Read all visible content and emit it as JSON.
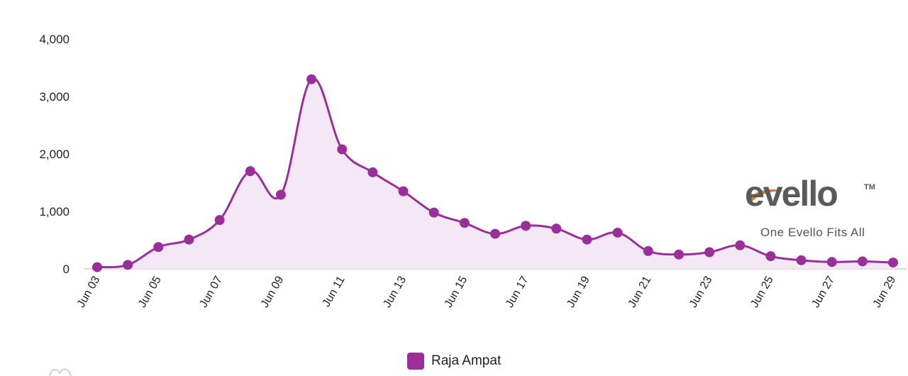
{
  "chart_data": {
    "type": "area",
    "x": [
      "Jun 03",
      "Jun 04",
      "Jun 05",
      "Jun 06",
      "Jun 07",
      "Jun 08",
      "Jun 09",
      "Jun 10",
      "Jun 11",
      "Jun 12",
      "Jun 13",
      "Jun 14",
      "Jun 15",
      "Jun 16",
      "Jun 17",
      "Jun 18",
      "Jun 19",
      "Jun 20",
      "Jun 21",
      "Jun 22",
      "Jun 23",
      "Jun 24",
      "Jun 25",
      "Jun 26",
      "Jun 27",
      "Jun 28",
      "Jun 29"
    ],
    "xtick_labels": [
      "Jun 03",
      "Jun 05",
      "Jun 07",
      "Jun 09",
      "Jun 11",
      "Jun 13",
      "Jun 15",
      "Jun 17",
      "Jun 19",
      "Jun 21",
      "Jun 23",
      "Jun 25",
      "Jun 27",
      "Jun 29"
    ],
    "series": [
      {
        "name": "Raja Ampat",
        "values": [
          30,
          70,
          380,
          510,
          850,
          1700,
          1290,
          3300,
          2080,
          1680,
          1350,
          980,
          800,
          610,
          750,
          700,
          510,
          630,
          310,
          250,
          290,
          410,
          220,
          150,
          120,
          130,
          110
        ]
      }
    ],
    "ylim": [
      0,
      4000
    ],
    "yticks": [
      0,
      1000,
      2000,
      3000,
      4000
    ],
    "ytick_labels": [
      "0",
      "1,000",
      "2,000",
      "3,000",
      "4,000"
    ],
    "grid": false,
    "legend": "bottom-center"
  },
  "colors": {
    "line": "#9a2f9c",
    "fill": "#f5e8f6",
    "axis": "#d9c8da"
  },
  "legend": {
    "label": "Raja Ampat"
  },
  "logo": {
    "wordmark": "evello",
    "trademark": "TM",
    "tagline": "One Evello Fits All"
  }
}
